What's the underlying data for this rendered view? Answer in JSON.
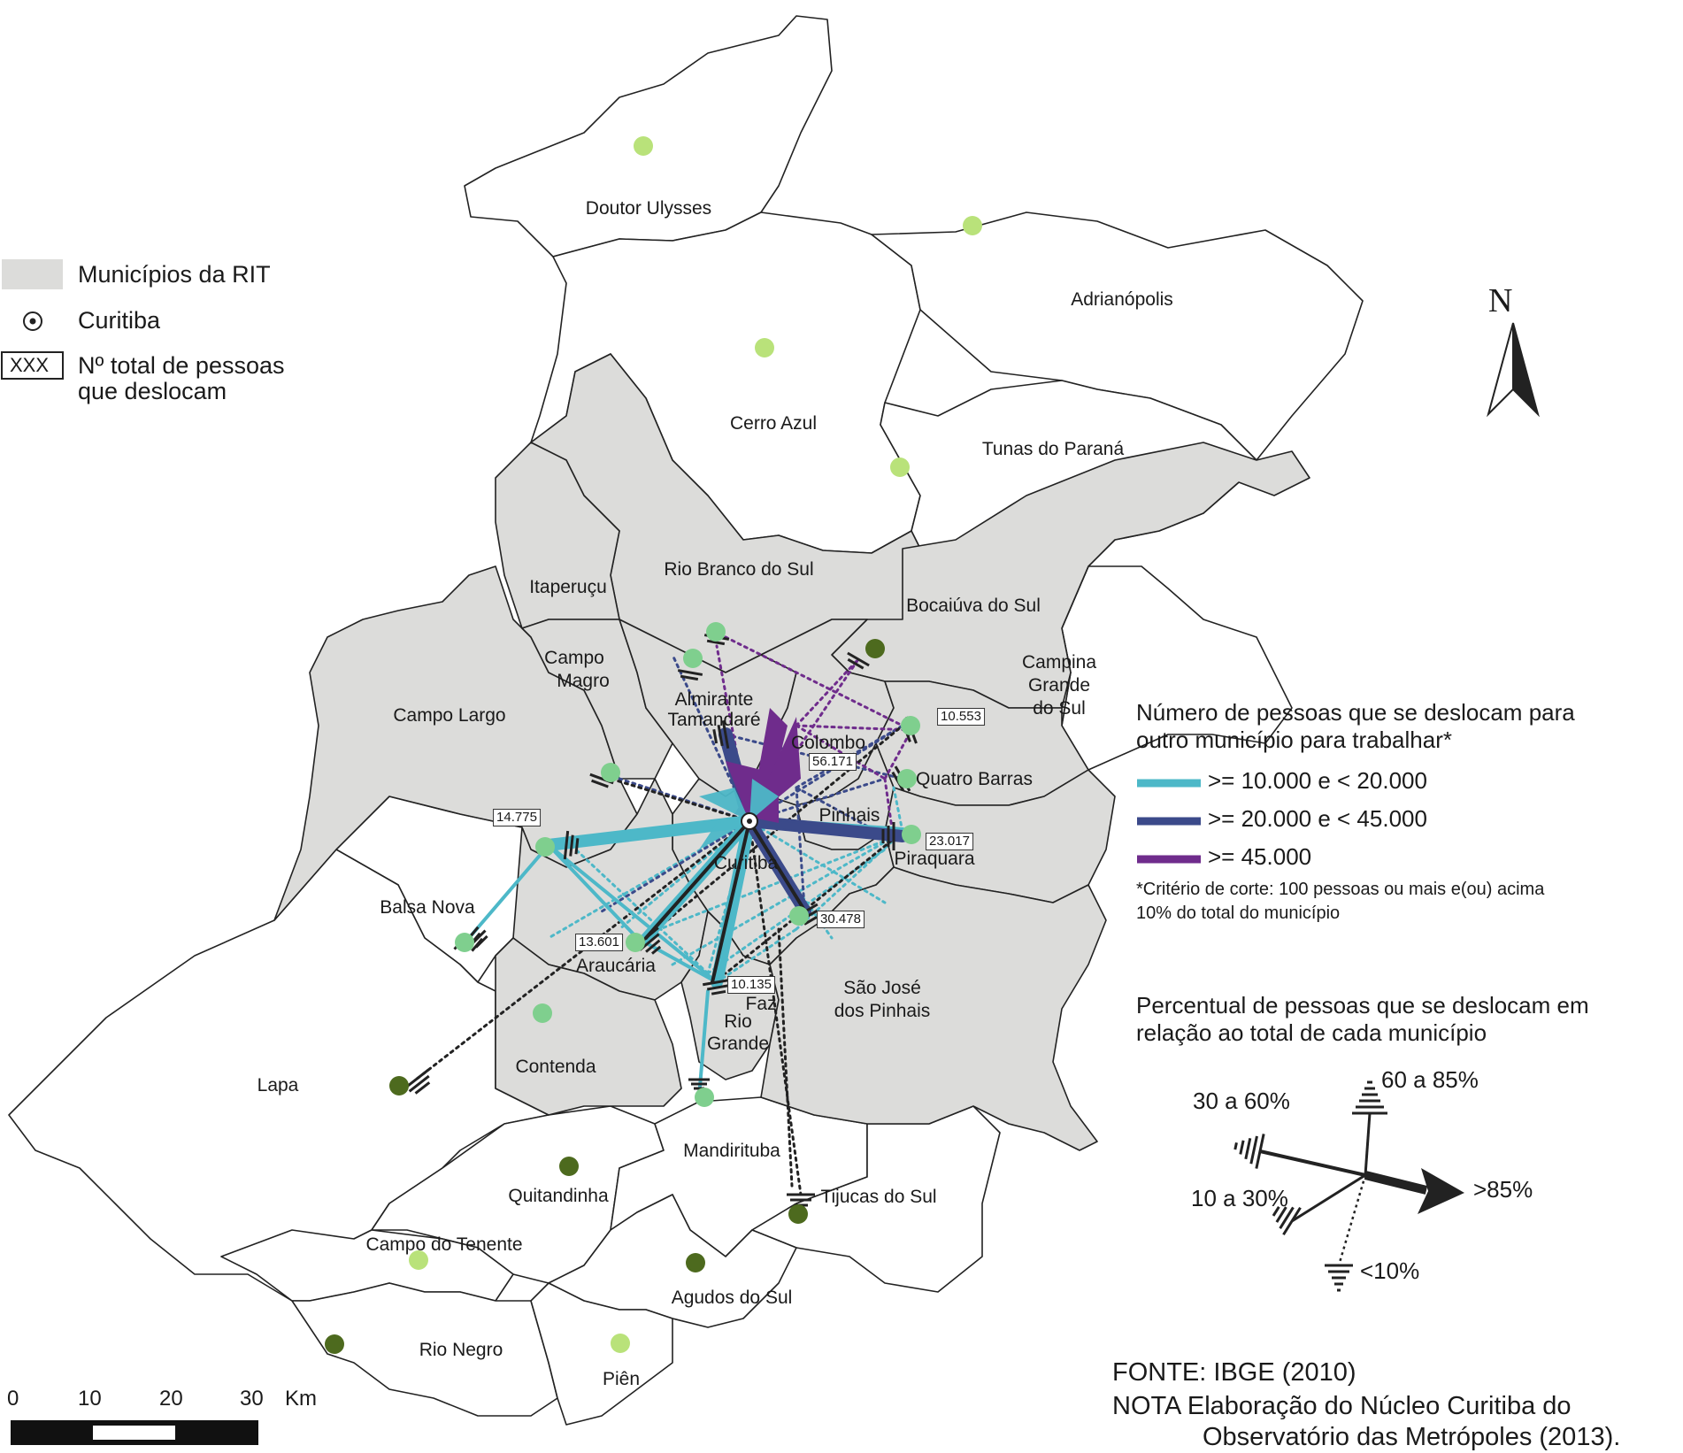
{
  "legend_top": {
    "rit_label": "Municípios da RIT",
    "curitiba_label": "Curitiba",
    "box_sample": "XXX",
    "box_label_line1": "Nº total de pessoas",
    "box_label_line2": "que deslocam",
    "colors": {
      "rit_fill": "#dcdcda",
      "outside_fill": "#ffffff"
    }
  },
  "municipalities": {
    "doutor_ulysses": "Doutor Ulysses",
    "adrianopolis": "Adrianópolis",
    "cerro_azul": "Cerro Azul",
    "tunas": "Tunas do Paraná",
    "rio_branco": "Rio Branco do Sul",
    "itaperucu": "Itaperuçu",
    "bocaiuva": "Bocaiúva do Sul",
    "campo_magro_1": "Campo",
    "campo_magro_2": "Magro",
    "campina_1": "Campina",
    "campina_2": "Grande",
    "campina_3": "do Sul",
    "campo_largo": "Campo Largo",
    "almirante_1": "Almirante",
    "almirante_2": "Tamandaré",
    "colombo": "Colombo",
    "quatro_barras": "Quatro Barras",
    "pinhais": "Pinhais",
    "piraquara": "Piraquara",
    "curitiba": "Curitiba",
    "balsa_nova": "Balsa Nova",
    "araucaria": "Araucária",
    "faz_1": "Faz",
    "faz_2": "Rio",
    "faz_3": "Grande",
    "sjp_1": "São José",
    "sjp_2": "dos Pinhais",
    "contenda": "Contenda",
    "lapa": "Lapa",
    "mandirituba": "Mandirituba",
    "quitandinha": "Quitandinha",
    "tijucas": "Tijucas do Sul",
    "campo_tenente": "Campo do Tenente",
    "agudos": "Agudos do Sul",
    "rio_negro": "Rio Negro",
    "pien": "Piên"
  },
  "flow_totals": {
    "campo_largo": "14.775",
    "araucaria": "13.601",
    "faz_rio_grande": "10.135",
    "colombo": "56.171",
    "quatro_barras": "10.553",
    "piraquara": "23.017",
    "sjp": "30.478"
  },
  "north_label": "N",
  "legend_flow": {
    "title_line1": "Número de pessoas que se deslocam para",
    "title_line2": "outro município para trabalhar*",
    "items": [
      {
        "label": ">= 10.000 e < 20.000",
        "color": "#4db8c8"
      },
      {
        "label": ">= 20.000 e < 45.000",
        "color": "#3b4a8a"
      },
      {
        "label": ">= 45.000",
        "color": "#6f2c8c"
      }
    ],
    "note_line1": "*Critério de corte: 100 pessoas ou mais e(ou) acima",
    "note_line2": "10% do total do município"
  },
  "legend_percent": {
    "title_line1": "Percentual de pessoas que se deslocam em",
    "title_line2": "relação ao total de cada município",
    "p60_85": "60 a 85%",
    "p30_60": "30 a 60%",
    "p10_30": "10 a 30%",
    "p85": ">85%",
    "p10": "<10%"
  },
  "source": {
    "line1": "FONTE: IBGE (2010)",
    "line2": "NOTA Elaboração do Núcleo Curitiba do",
    "line3": "Observatório das Metrópoles (2013)."
  },
  "scale": {
    "t0": "0",
    "t10": "10",
    "t20": "20",
    "t30": "30",
    "unit": "Km"
  }
}
